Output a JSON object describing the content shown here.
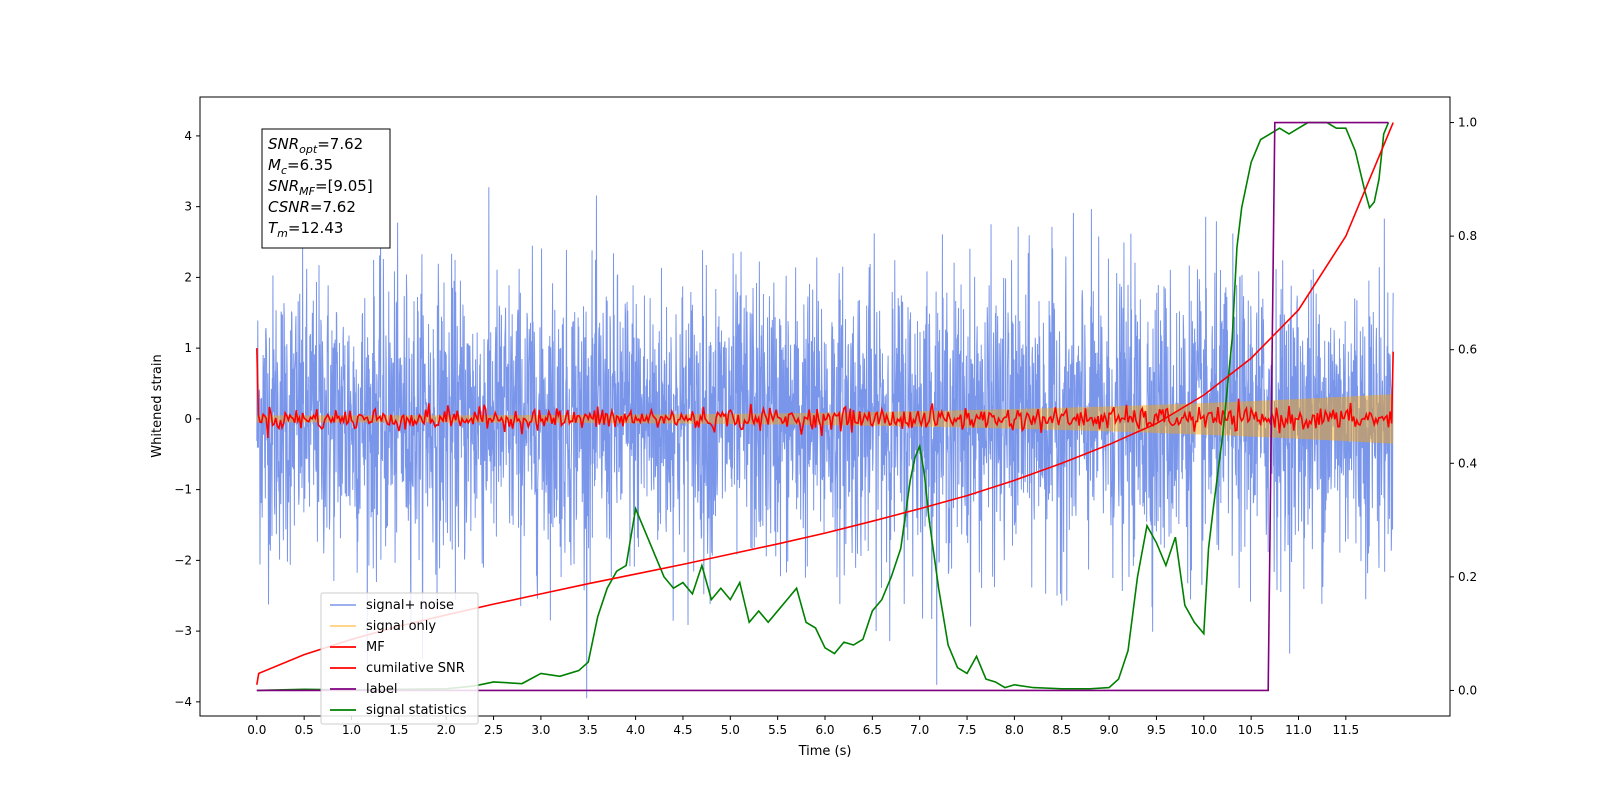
{
  "chart_data": {
    "type": "line",
    "xlabel": "Time (s)",
    "ylabel": "Whitened strain",
    "xlim": [
      -0.6,
      12.6
    ],
    "ylim": [
      -4.2,
      4.55
    ],
    "y2lim": [
      -0.045,
      1.045
    ],
    "xticks": [
      "0.0",
      "0.5",
      "1.0",
      "1.5",
      "2.0",
      "2.5",
      "3.0",
      "3.5",
      "4.0",
      "4.5",
      "5.0",
      "5.5",
      "6.0",
      "6.5",
      "7.0",
      "7.5",
      "8.0",
      "8.5",
      "9.0",
      "9.5",
      "10.0",
      "10.5",
      "11.0",
      "11.5"
    ],
    "xtick_values": [
      0,
      0.5,
      1,
      1.5,
      2,
      2.5,
      3,
      3.5,
      4,
      4.5,
      5,
      5.5,
      6,
      6.5,
      7,
      7.5,
      8,
      8.5,
      9,
      9.5,
      10,
      10.5,
      11,
      11.5
    ],
    "yticks": [
      "4",
      "3",
      "2",
      "1",
      "0",
      "−1",
      "−2",
      "−3",
      "−4"
    ],
    "ytick_values": [
      4,
      3,
      2,
      1,
      0,
      -1,
      -2,
      -3,
      -4
    ],
    "y2ticks": [
      "1.0",
      "0.8",
      "0.6",
      "0.4",
      "0.2",
      "0.0"
    ],
    "y2tick_values": [
      1.0,
      0.8,
      0.6,
      0.4,
      0.2,
      0.0
    ],
    "grid": false,
    "legend_position": "lower-left",
    "duration": 12.0,
    "series": [
      {
        "name": "signal+ noise",
        "color": "#4169e1",
        "noise_std": 1.0,
        "axis": "left"
      },
      {
        "name": "signal only",
        "color": "#ffa500",
        "envelope_start": 0.05,
        "envelope_end": 0.35,
        "axis": "left"
      },
      {
        "name": "MF",
        "color": "#ff0000",
        "axis": "left"
      },
      {
        "name": "cumilative SNR",
        "color": "#ff0000",
        "axis": "right",
        "x": [
          0.0,
          0.02,
          0.5,
          1.0,
          1.5,
          2.0,
          2.5,
          3.0,
          3.5,
          4.0,
          4.5,
          5.0,
          5.5,
          6.0,
          6.5,
          7.0,
          7.5,
          8.0,
          8.5,
          9.0,
          9.5,
          10.0,
          10.5,
          11.0,
          11.5,
          12.0
        ],
        "values": [
          0.01,
          0.03,
          0.063,
          0.09,
          0.113,
          0.133,
          0.152,
          0.17,
          0.188,
          0.205,
          0.222,
          0.24,
          0.258,
          0.277,
          0.298,
          0.32,
          0.343,
          0.37,
          0.4,
          0.433,
          0.47,
          0.52,
          0.585,
          0.67,
          0.8,
          1.0
        ]
      },
      {
        "name": "label",
        "color": "#800080",
        "axis": "right",
        "x": [
          0.0,
          10.68,
          10.75,
          11.95
        ],
        "values": [
          0.0,
          0.0,
          1.0,
          1.0
        ]
      },
      {
        "name": "signal statistics",
        "color": "#008000",
        "axis": "right",
        "x": [
          0.0,
          0.5,
          1.0,
          1.5,
          2.0,
          2.3,
          2.5,
          2.8,
          3.0,
          3.2,
          3.4,
          3.5,
          3.6,
          3.7,
          3.8,
          3.9,
          4.0,
          4.1,
          4.2,
          4.3,
          4.4,
          4.5,
          4.6,
          4.7,
          4.8,
          4.9,
          5.0,
          5.1,
          5.2,
          5.3,
          5.4,
          5.5,
          5.6,
          5.7,
          5.8,
          5.9,
          6.0,
          6.1,
          6.2,
          6.3,
          6.4,
          6.5,
          6.6,
          6.7,
          6.8,
          6.9,
          6.95,
          7.0,
          7.05,
          7.1,
          7.2,
          7.3,
          7.4,
          7.5,
          7.6,
          7.7,
          7.8,
          7.9,
          8.0,
          8.2,
          8.5,
          8.8,
          9.0,
          9.1,
          9.2,
          9.3,
          9.4,
          9.5,
          9.6,
          9.7,
          9.8,
          9.9,
          10.0,
          10.05,
          10.1,
          10.2,
          10.3,
          10.35,
          10.4,
          10.5,
          10.6,
          10.7,
          10.8,
          10.9,
          11.0,
          11.1,
          11.2,
          11.3,
          11.4,
          11.5,
          11.6,
          11.7,
          11.75,
          11.8,
          11.85,
          11.9,
          11.95
        ],
        "values": [
          0.0,
          0.002,
          0.001,
          0.002,
          0.003,
          0.008,
          0.015,
          0.012,
          0.03,
          0.025,
          0.035,
          0.05,
          0.13,
          0.18,
          0.21,
          0.22,
          0.32,
          0.28,
          0.24,
          0.2,
          0.18,
          0.19,
          0.17,
          0.22,
          0.16,
          0.18,
          0.16,
          0.19,
          0.12,
          0.14,
          0.12,
          0.14,
          0.16,
          0.18,
          0.12,
          0.11,
          0.075,
          0.065,
          0.085,
          0.08,
          0.09,
          0.14,
          0.16,
          0.2,
          0.25,
          0.37,
          0.41,
          0.43,
          0.38,
          0.3,
          0.18,
          0.08,
          0.04,
          0.03,
          0.06,
          0.02,
          0.015,
          0.005,
          0.01,
          0.005,
          0.003,
          0.003,
          0.005,
          0.02,
          0.07,
          0.2,
          0.29,
          0.26,
          0.22,
          0.27,
          0.15,
          0.12,
          0.1,
          0.25,
          0.32,
          0.45,
          0.62,
          0.78,
          0.85,
          0.93,
          0.97,
          0.98,
          0.99,
          0.98,
          0.99,
          1.0,
          1.0,
          1.0,
          0.99,
          0.99,
          0.95,
          0.88,
          0.85,
          0.86,
          0.9,
          0.98,
          1.0
        ]
      }
    ],
    "annotation_box": {
      "lines": [
        {
          "var": "SNR",
          "sub": "opt",
          "value": "=7.62"
        },
        {
          "var": "M",
          "sub": "c",
          "value": "=6.35"
        },
        {
          "var": "SNR",
          "sub": "MF",
          "value": "=[9.05]"
        },
        {
          "var": "CSNR",
          "sub": "",
          "value": "=7.62"
        },
        {
          "var": "T",
          "sub": "m",
          "value": "=12.43"
        }
      ]
    }
  }
}
